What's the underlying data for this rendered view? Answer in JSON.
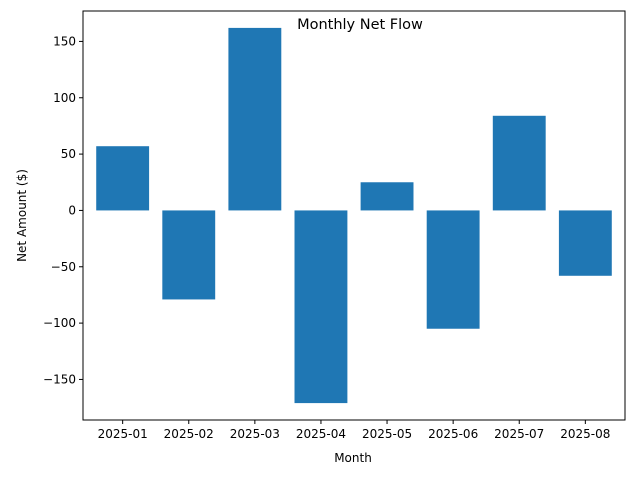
{
  "chart_data": {
    "type": "bar",
    "title": "Monthly Net Flow",
    "xlabel": "Month",
    "ylabel": "Net Amount ($)",
    "categories": [
      "2025-01",
      "2025-02",
      "2025-03",
      "2025-04",
      "2025-05",
      "2025-06",
      "2025-07",
      "2025-08"
    ],
    "values": [
      57,
      -79,
      162,
      -171,
      25,
      -105,
      84,
      -58
    ],
    "ylim": [
      -186,
      177
    ],
    "yticks": [
      -150,
      -100,
      -50,
      0,
      50,
      100,
      150
    ],
    "ytick_labels": [
      "−150",
      "−100",
      "−50",
      "0",
      "50",
      "100",
      "150"
    ],
    "bar_color": "#1f77b4",
    "grid": false,
    "legend": "none"
  }
}
